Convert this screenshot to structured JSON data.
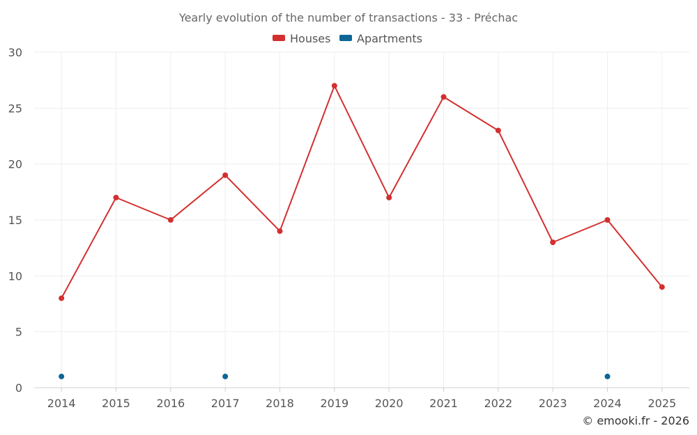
{
  "chart_data": {
    "type": "line",
    "title": "Yearly evolution of the number of transactions - 33 - Préchac",
    "categories": [
      "2014",
      "2015",
      "2016",
      "2017",
      "2018",
      "2019",
      "2020",
      "2021",
      "2022",
      "2023",
      "2024",
      "2025"
    ],
    "series": [
      {
        "name": "Houses",
        "color": "#d32f2f",
        "values": [
          8,
          17,
          15,
          19,
          14,
          27,
          17,
          26,
          23,
          13,
          15,
          9
        ]
      },
      {
        "name": "Apartments",
        "color": "#0d6696",
        "values": [
          1,
          null,
          null,
          1,
          null,
          null,
          null,
          null,
          null,
          null,
          1,
          null
        ]
      }
    ],
    "ylim": [
      0,
      30
    ],
    "yticks": [
      0,
      5,
      10,
      15,
      20,
      25,
      30
    ],
    "xlabel": "",
    "ylabel": "",
    "legend": "top-center",
    "grid": true
  },
  "credit": "© emooki.fr - 2026"
}
